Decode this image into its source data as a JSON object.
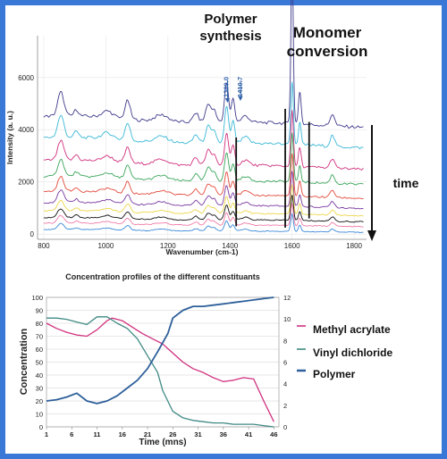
{
  "chart_data": [
    {
      "type": "line",
      "title": "",
      "xlabel": "Wavenumber (cm-1)",
      "ylabel": "Intensity (a. u.)",
      "xlim": [
        780,
        1840
      ],
      "ylim": [
        -200,
        7600
      ],
      "x_ticks": [
        800,
        1000,
        1200,
        1400,
        1600,
        1800
      ],
      "y_ticks": [
        0,
        2000,
        4000,
        6000
      ],
      "peak_labels": [
        "1389.0",
        "1410.7"
      ],
      "annotations": {
        "polymer": "Polymer synthesis",
        "polymer_l1": "Polymer",
        "polymer_l2": "synthesis",
        "monomer_l1": "Monomer",
        "monomer_l2": "conversion",
        "time": "time"
      },
      "markers_x": [
        1420,
        1578,
        1655
      ],
      "series": [
        {
          "color": "#3f3a8c",
          "offset": 4300,
          "scale": 1.0
        },
        {
          "color": "#3ab8d6",
          "offset": 3500,
          "scale": 0.92
        },
        {
          "color": "#d0307e",
          "offset": 2650,
          "scale": 0.82
        },
        {
          "color": "#3aa55a",
          "offset": 2050,
          "scale": 0.72
        },
        {
          "color": "#e34a3c",
          "offset": 1500,
          "scale": 0.62
        },
        {
          "color": "#7a3aa0",
          "offset": 1100,
          "scale": 0.52
        },
        {
          "color": "#ecd64a",
          "offset": 800,
          "scale": 0.44
        },
        {
          "color": "#111111",
          "offset": 550,
          "scale": 0.38
        },
        {
          "color": "#f07aa8",
          "offset": 350,
          "scale": 0.32
        },
        {
          "color": "#3a88d8",
          "offset": 120,
          "scale": 0.26
        }
      ]
    },
    {
      "type": "line",
      "title": "Concentration profiles of the different constituants",
      "xlabel": "Time (mns)",
      "ylabel": "Concentration",
      "xlim": [
        1,
        47
      ],
      "ylim_left": [
        0,
        100
      ],
      "ylim_right": [
        0,
        12
      ],
      "x_ticks": [
        1,
        6,
        11,
        16,
        21,
        26,
        31,
        36,
        41,
        46
      ],
      "y_ticks_left": [
        0,
        10,
        20,
        30,
        40,
        50,
        60,
        70,
        80,
        90,
        100
      ],
      "y_ticks_right": [
        0,
        2,
        4,
        6,
        8,
        10,
        12
      ],
      "series": [
        {
          "name": "Methyl acrylate",
          "color": "#d0307e",
          "axis": "left",
          "x": [
            1,
            3,
            5,
            7,
            9,
            11,
            13,
            14,
            16,
            18,
            20,
            22,
            24,
            26,
            28,
            30,
            32,
            34,
            36,
            38,
            40,
            42,
            44,
            46
          ],
          "y": [
            80,
            76,
            73,
            71,
            70,
            75,
            82,
            84,
            82,
            77,
            72,
            68,
            64,
            57,
            50,
            45,
            42,
            38,
            35,
            36,
            38,
            37,
            20,
            4
          ]
        },
        {
          "name": "Vinyl dichloride",
          "color": "#3f8a84",
          "axis": "left",
          "x": [
            1,
            3,
            5,
            7,
            9,
            11,
            13,
            15,
            17,
            19,
            21,
            23,
            24,
            26,
            28,
            30,
            32,
            34,
            36,
            38,
            40,
            42,
            44,
            46
          ],
          "y": [
            84,
            84,
            83,
            81,
            79,
            85,
            85,
            80,
            76,
            68,
            55,
            42,
            28,
            12,
            7,
            5,
            4,
            3,
            3,
            2,
            2,
            2,
            1,
            0
          ]
        },
        {
          "name": "Polymer",
          "color": "#2d5f9a",
          "axis": "left",
          "x": [
            1,
            3,
            5,
            7,
            9,
            11,
            13,
            15,
            17,
            19,
            21,
            23,
            25,
            26,
            28,
            30,
            32,
            34,
            36,
            38,
            40,
            42,
            44,
            46
          ],
          "y": [
            20,
            21,
            23,
            26,
            20,
            18,
            20,
            24,
            30,
            36,
            45,
            58,
            72,
            84,
            90,
            93,
            93,
            94,
            95,
            96,
            97,
            98,
            99,
            100
          ]
        }
      ]
    }
  ]
}
